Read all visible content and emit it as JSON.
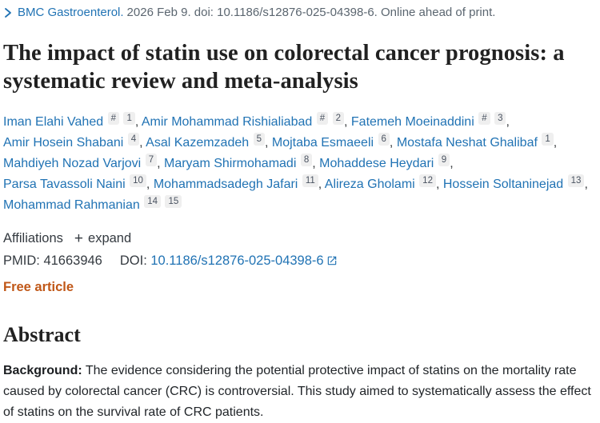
{
  "citation": {
    "journal": "BMC Gastroenterol.",
    "details": "2026 Feb 9. doi: 10.1186/s12876-025-04398-6. Online ahead of print."
  },
  "title": "The impact of statin use on colorectal cancer prognosis: a systematic review and meta-analysis",
  "author_lines": [
    [
      {
        "name": "Iman Elahi Vahed",
        "sups": [
          "#",
          "1"
        ]
      },
      {
        "name": "Amir Mohammad Rishialiabad",
        "sups": [
          "#",
          "2"
        ]
      },
      {
        "name": "Fatemeh Moeinaddini",
        "sups": [
          "#",
          "3"
        ]
      }
    ],
    [
      {
        "name": "Amir Hosein Shabani",
        "sups": [
          "4"
        ]
      },
      {
        "name": "Asal Kazemzadeh",
        "sups": [
          "5"
        ]
      },
      {
        "name": "Mojtaba Esmaeeli",
        "sups": [
          "6"
        ]
      },
      {
        "name": "Mostafa Neshat Ghalibaf",
        "sups": [
          "1"
        ]
      }
    ],
    [
      {
        "name": "Mahdiyeh Nozad Varjovi",
        "sups": [
          "7"
        ]
      },
      {
        "name": "Maryam Shirmohamadi",
        "sups": [
          "8"
        ]
      },
      {
        "name": "Mohaddese Heydari",
        "sups": [
          "9"
        ]
      }
    ],
    [
      {
        "name": "Parsa Tavassoli Naini",
        "sups": [
          "10"
        ]
      },
      {
        "name": "Mohammadsadegh Jafari",
        "sups": [
          "11"
        ]
      },
      {
        "name": "Alireza Gholami",
        "sups": [
          "12"
        ]
      },
      {
        "name": "Hossein Soltaninejad",
        "sups": [
          "13"
        ]
      }
    ],
    [
      {
        "name": "Mohammad Rahmanian",
        "sups": [
          "14",
          "15"
        ]
      }
    ]
  ],
  "affiliations": {
    "label": "Affiliations",
    "plus_icon": "+",
    "expand_label": "expand"
  },
  "identifiers": {
    "pmid_label": "PMID:",
    "pmid": "41663946",
    "doi_label": "DOI:",
    "doi": "10.1186/s12876-025-04398-6"
  },
  "free_article_label": "Free article",
  "abstract": {
    "heading": "Abstract",
    "background_label": "Background:",
    "background_text": " The evidence considering the potential protective impact of statins on the mortality rate caused by colorectal cancer (CRC) is controversial. This study aimed to systematically assess the effect of statins on the survival rate of CRC patients."
  },
  "colors": {
    "link_blue": "#2173b4",
    "text_dark": "#212121",
    "citation_gray": "#5b6670",
    "free_article_orange": "#c05717",
    "badge_background": "#efefef",
    "badge_text": "#4a5361"
  }
}
